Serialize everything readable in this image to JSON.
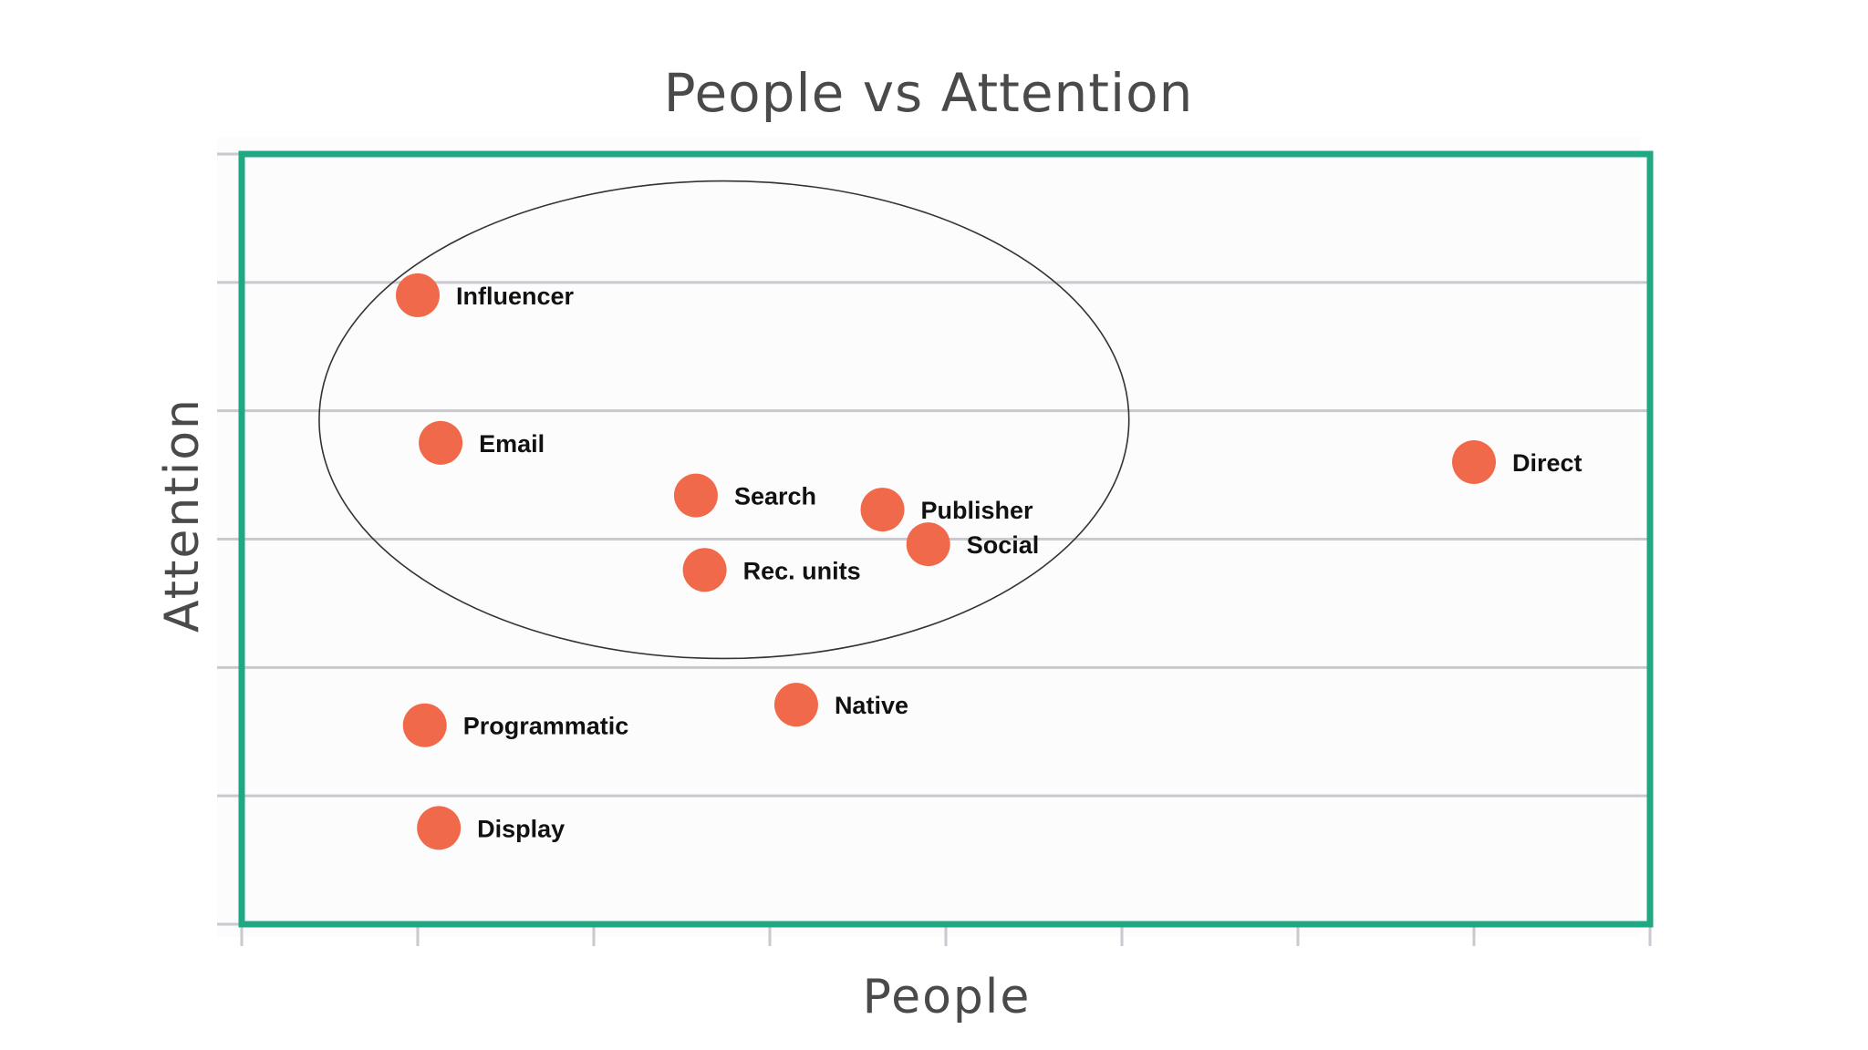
{
  "colors": {
    "frame": "#1fa882",
    "point": "#f0694a",
    "grid": "#c9c9cf",
    "ellipse": "#333333",
    "plot_bg": "#fcfcfd"
  },
  "chart_data": {
    "type": "scatter",
    "title": "People vs Attention",
    "xlabel": "People",
    "ylabel": "Attention",
    "xlim": [
      0,
      8
    ],
    "ylim": [
      0,
      6
    ],
    "grid": true,
    "x_tick_count": 9,
    "y_tick_count": 7,
    "tick_labels_shown": false,
    "points": [
      {
        "label": "Influencer",
        "x": 1.0,
        "y": 4.9
      },
      {
        "label": "Email",
        "x": 1.13,
        "y": 3.75
      },
      {
        "label": "Search",
        "x": 2.58,
        "y": 3.34
      },
      {
        "label": "Publisher",
        "x": 3.64,
        "y": 3.23
      },
      {
        "label": "Social",
        "x": 3.9,
        "y": 2.96
      },
      {
        "label": "Rec. units",
        "x": 2.63,
        "y": 2.76
      },
      {
        "label": "Direct",
        "x": 7.0,
        "y": 3.6
      },
      {
        "label": "Native",
        "x": 3.15,
        "y": 1.71
      },
      {
        "label": "Programmatic",
        "x": 1.04,
        "y": 1.55
      },
      {
        "label": "Display",
        "x": 1.12,
        "y": 0.75
      }
    ],
    "annotations": [
      {
        "type": "ellipse",
        "cx": 2.74,
        "cy": 3.93,
        "rx": 2.3,
        "ry": 1.86,
        "label": ""
      }
    ]
  }
}
